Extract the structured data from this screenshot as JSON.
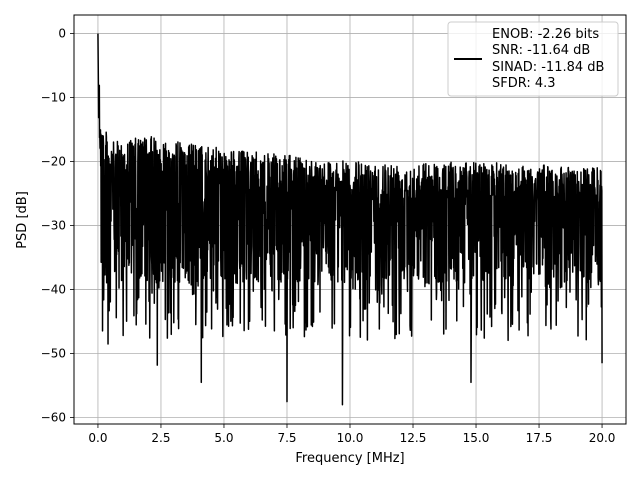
{
  "chart_data": {
    "type": "line",
    "title": "",
    "xlabel": "Frequency [MHz]",
    "ylabel": "PSD [dB]",
    "xlim": [
      -0.95,
      20.95
    ],
    "ylim": [
      -61,
      2.9
    ],
    "xticks": [
      0.0,
      2.5,
      5.0,
      7.5,
      10.0,
      12.5,
      15.0,
      17.5,
      20.0
    ],
    "xtick_labels": [
      "0.0",
      "2.5",
      "5.0",
      "7.5",
      "10.0",
      "12.5",
      "15.0",
      "17.5",
      "20.0"
    ],
    "yticks": [
      0,
      -10,
      -20,
      -30,
      -40,
      -50,
      -60
    ],
    "ytick_labels": [
      "0",
      "−10",
      "−20",
      "−30",
      "−40",
      "−50",
      "−60"
    ],
    "grid": true,
    "legend_position": "top-right",
    "legend": {
      "lines": [
        "ENOB: -2.26 bits",
        "SNR: -11.64 dB",
        "SINAD: -11.84 dB",
        "SFDR: 4.3"
      ]
    },
    "series": [
      {
        "color": "#000000",
        "x_range": [
          0,
          20
        ],
        "peak": {
          "x": 0.0,
          "y": 0
        },
        "noise_floor_mean": -28,
        "upper_envelope": [
          [
            0.1,
            -13
          ],
          [
            0.5,
            -17
          ],
          [
            2.0,
            -16
          ],
          [
            5.0,
            -18
          ],
          [
            10.0,
            -20
          ],
          [
            15.0,
            -20
          ],
          [
            20.0,
            -21
          ]
        ],
        "notable_minima": [
          {
            "x": 0.4,
            "y": -48.5
          },
          {
            "x": 2.35,
            "y": -51.8
          },
          {
            "x": 4.1,
            "y": -54.5
          },
          {
            "x": 7.5,
            "y": -57.5
          },
          {
            "x": 9.7,
            "y": -58.0
          },
          {
            "x": 14.8,
            "y": -54.5
          },
          {
            "x": 20.0,
            "y": -51.5
          }
        ]
      }
    ]
  }
}
